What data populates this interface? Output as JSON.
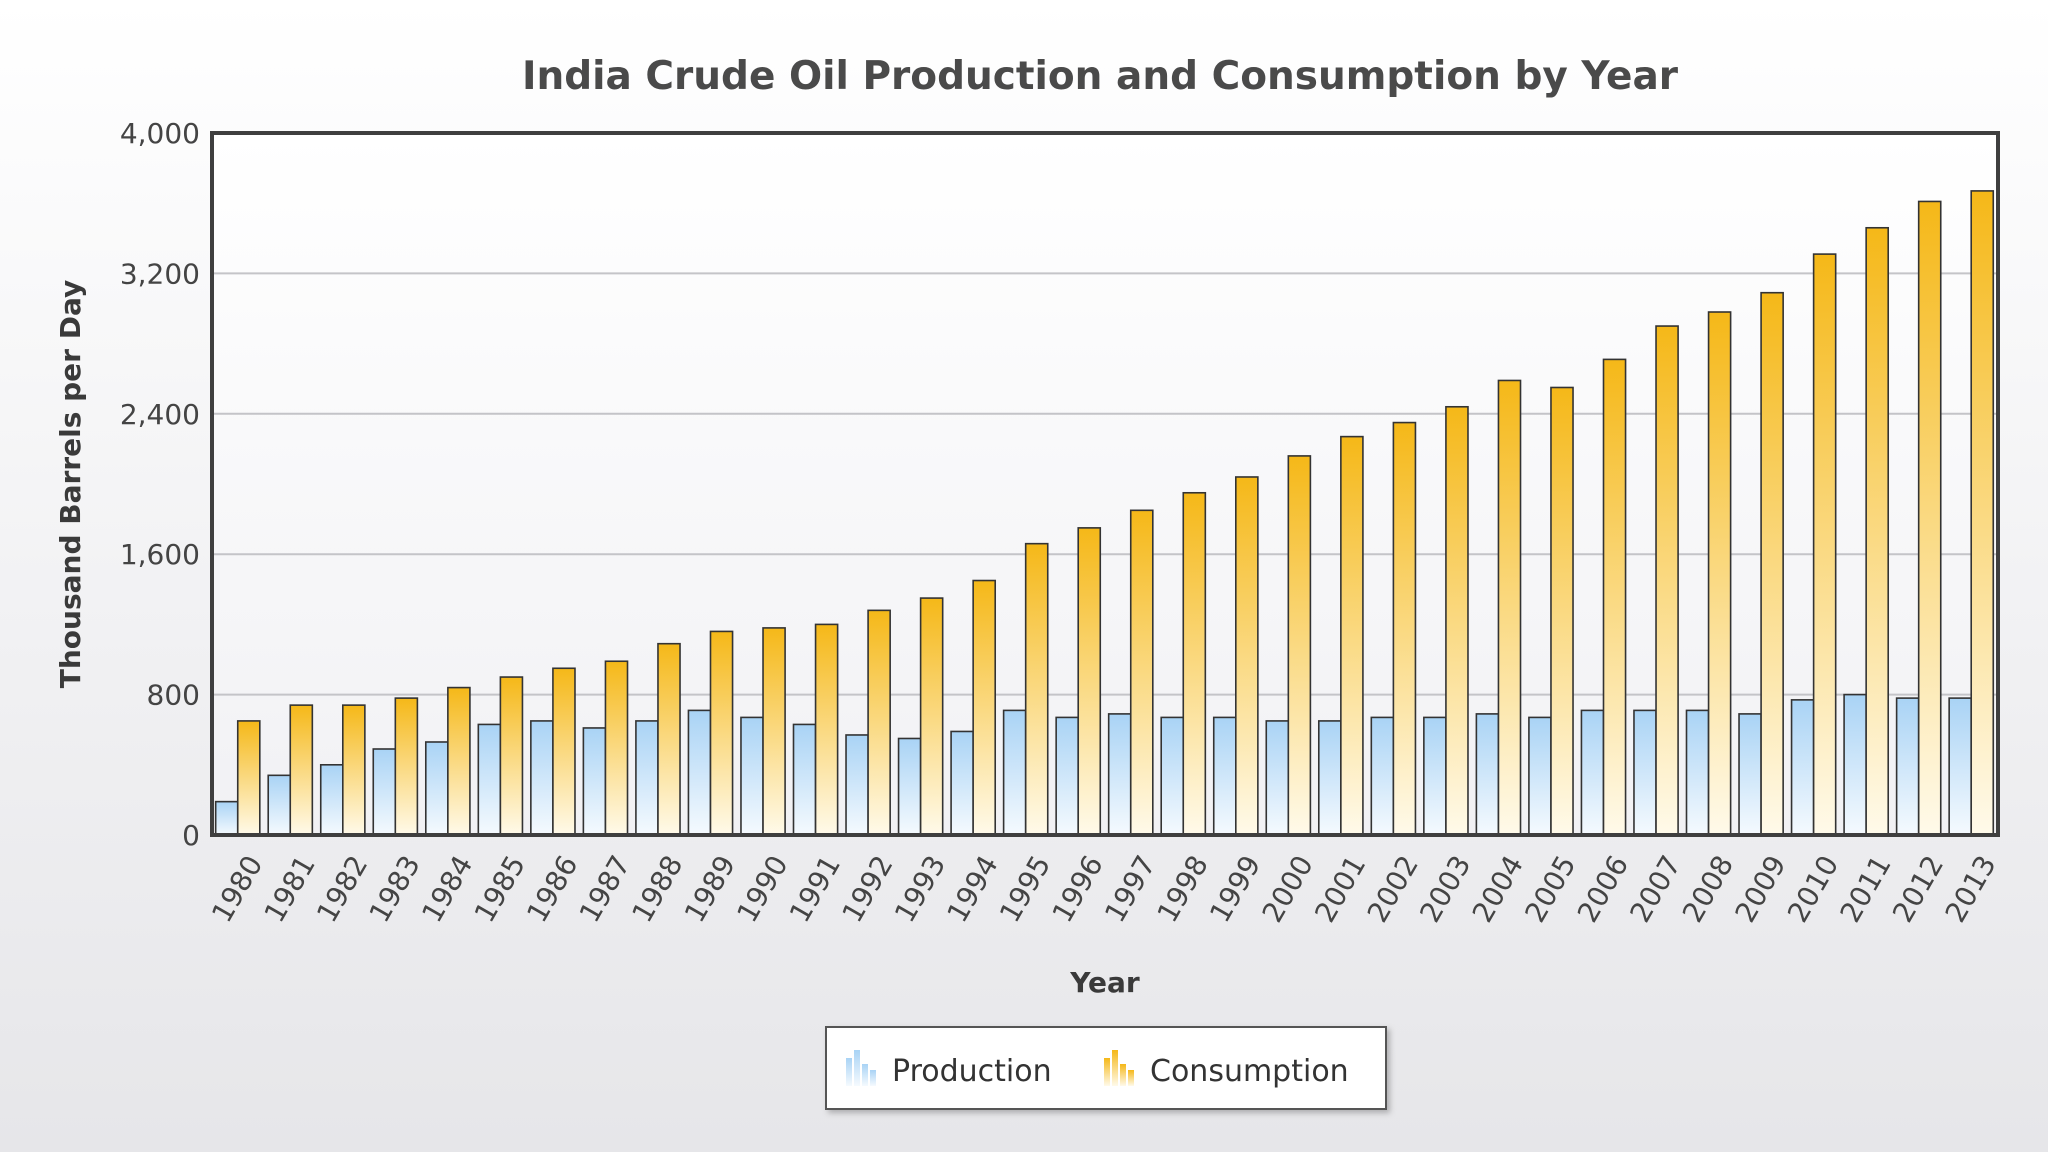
{
  "chart_data": {
    "type": "bar",
    "title": "India Crude Oil Production and Consumption by Year",
    "xlabel": "Year",
    "ylabel": "Thousand Barrels per Day",
    "ylim": [
      0,
      4000
    ],
    "yticks": [
      "0",
      "800",
      "1,600",
      "2,400",
      "3,200",
      "4,000"
    ],
    "ytick_values": [
      0,
      800,
      1600,
      2400,
      3200,
      4000
    ],
    "grid": true,
    "legend_position": "bottom-center",
    "categories": [
      "1980",
      "1981",
      "1982",
      "1983",
      "1984",
      "1985",
      "1986",
      "1987",
      "1988",
      "1989",
      "1990",
      "1991",
      "1992",
      "1993",
      "1994",
      "1995",
      "1996",
      "1997",
      "1998",
      "1999",
      "2000",
      "2001",
      "2002",
      "2003",
      "2004",
      "2005",
      "2006",
      "2007",
      "2008",
      "2009",
      "2010",
      "2011",
      "2012",
      "2013"
    ],
    "series": [
      {
        "name": "Production",
        "color": "#a9d3f5",
        "values": [
          190,
          340,
          400,
          490,
          530,
          630,
          650,
          610,
          650,
          710,
          670,
          630,
          570,
          550,
          590,
          710,
          670,
          690,
          670,
          670,
          650,
          650,
          670,
          670,
          690,
          670,
          710,
          710,
          710,
          690,
          770,
          800,
          780,
          780
        ]
      },
      {
        "name": "Consumption",
        "color": "#f5b818",
        "values": [
          650,
          740,
          740,
          780,
          840,
          900,
          950,
          990,
          1090,
          1160,
          1180,
          1200,
          1280,
          1350,
          1450,
          1660,
          1750,
          1850,
          1950,
          2040,
          2160,
          2270,
          2350,
          2440,
          2590,
          2550,
          2710,
          2900,
          2980,
          3090,
          3310,
          3460,
          3610,
          3670
        ]
      }
    ]
  }
}
